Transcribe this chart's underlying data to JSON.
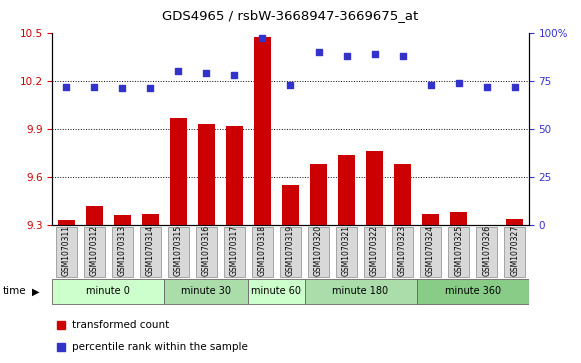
{
  "title": "GDS4965 / rsbW-3668947-3669675_at",
  "samples": [
    "GSM1070311",
    "GSM1070312",
    "GSM1070313",
    "GSM1070314",
    "GSM1070315",
    "GSM1070316",
    "GSM1070317",
    "GSM1070318",
    "GSM1070319",
    "GSM1070320",
    "GSM1070321",
    "GSM1070322",
    "GSM1070323",
    "GSM1070324",
    "GSM1070325",
    "GSM1070326",
    "GSM1070327"
  ],
  "bar_values": [
    9.33,
    9.42,
    9.36,
    9.37,
    9.97,
    9.93,
    9.92,
    10.47,
    9.55,
    9.68,
    9.74,
    9.76,
    9.68,
    9.37,
    9.38,
    9.3,
    9.34
  ],
  "scatter_pct": [
    72,
    72,
    71,
    71,
    80,
    79,
    78,
    97,
    73,
    90,
    88,
    89,
    88,
    73,
    74,
    72,
    72
  ],
  "bar_color": "#cc0000",
  "scatter_color": "#3333cc",
  "ylim_left": [
    9.3,
    10.5
  ],
  "ylim_right": [
    0,
    100
  ],
  "yticks_left": [
    9.3,
    9.6,
    9.9,
    10.2,
    10.5
  ],
  "yticks_right": [
    0,
    25,
    50,
    75,
    100
  ],
  "hgrid_lines": [
    9.6,
    9.9,
    10.2
  ],
  "groups": [
    {
      "label": "minute 0",
      "start": 0,
      "end": 4,
      "color": "#ccffcc"
    },
    {
      "label": "minute 30",
      "start": 4,
      "end": 7,
      "color": "#aaddaa"
    },
    {
      "label": "minute 60",
      "start": 7,
      "end": 9,
      "color": "#ccffcc"
    },
    {
      "label": "minute 180",
      "start": 9,
      "end": 13,
      "color": "#aaddaa"
    },
    {
      "label": "minute 360",
      "start": 13,
      "end": 17,
      "color": "#88cc88"
    }
  ],
  "bar_bottom": 9.3,
  "xlabel": "time"
}
